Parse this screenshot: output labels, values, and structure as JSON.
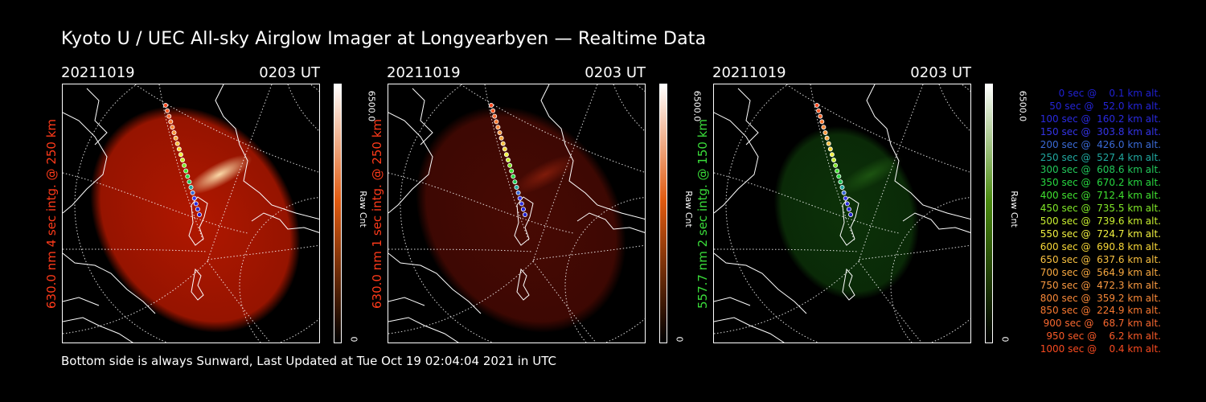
{
  "title": "Kyoto U / UEC All-sky Airglow Imager at Longyearbyen — Realtime Data",
  "footer": "Bottom side is always Sunward, Last Updated at Tue Oct 19 02:04:04 2021 in UTC",
  "panels": [
    {
      "date": "20211019",
      "time": "0203 UT",
      "label": "630.0 nm 4 sec intg. @ 250 km",
      "label_color": "#ff3a1a",
      "cbar_max": "6500.0",
      "cbar_min": "0",
      "cbar_unit": "Raw Cnt",
      "cbar_top": "#ffffff",
      "cbar_mid": "#e05a10",
      "cbar_bottom": "#000000",
      "glow_color": "#c41a00",
      "glow_opacity": 0.9,
      "aurora_color": "#ffe3b0",
      "aurora_opacity": 0.95
    },
    {
      "date": "20211019",
      "time": "0203 UT",
      "label": "630.0 nm 1 sec intg. @ 250 km",
      "label_color": "#ff3a1a",
      "cbar_max": "6500.0",
      "cbar_min": "0",
      "cbar_unit": "Raw Cnt",
      "cbar_top": "#ffffff",
      "cbar_mid": "#e05a10",
      "cbar_bottom": "#000000",
      "glow_color": "#5a0c04",
      "glow_opacity": 0.8,
      "aurora_color": "#b02a10",
      "aurora_opacity": 0.55
    },
    {
      "date": "20211019",
      "time": "0203 UT",
      "label": "557.7 nm 2 sec intg. @ 150 km",
      "label_color": "#3adc3a",
      "cbar_max": "6500.0",
      "cbar_min": "0",
      "cbar_unit": "Raw Cnt",
      "cbar_top": "#ffffff",
      "cbar_mid": "#4a8a10",
      "cbar_bottom": "#000000",
      "glow_color": "#0e3a0a",
      "glow_opacity": 0.85,
      "aurora_color": "#2e7a1a",
      "aurora_opacity": 0.5
    }
  ],
  "legend": [
    {
      "text": "   0 sec @    0.1 km alt.",
      "color": "#2020d0"
    },
    {
      "text": "  50 sec @   52.0 km alt.",
      "color": "#2424d8"
    },
    {
      "text": " 100 sec @  160.2 km alt.",
      "color": "#2a2ae0"
    },
    {
      "text": " 150 sec @  303.8 km alt.",
      "color": "#3434e6"
    },
    {
      "text": " 200 sec @  426.0 km alt.",
      "color": "#3a6ad6"
    },
    {
      "text": " 250 sec @  527.4 km alt.",
      "color": "#20a8a0"
    },
    {
      "text": " 300 sec @  608.6 km alt.",
      "color": "#22c85a"
    },
    {
      "text": " 350 sec @  670.2 km alt.",
      "color": "#28d840"
    },
    {
      "text": " 400 sec @  712.4 km alt.",
      "color": "#40e030"
    },
    {
      "text": " 450 sec @  735.5 km alt.",
      "color": "#80e828"
    },
    {
      "text": " 500 sec @  739.6 km alt.",
      "color": "#c8ee30"
    },
    {
      "text": " 550 sec @  724.7 km alt.",
      "color": "#f0f040"
    },
    {
      "text": " 600 sec @  690.8 km alt.",
      "color": "#f8d838"
    },
    {
      "text": " 650 sec @  637.6 km alt.",
      "color": "#f8c040"
    },
    {
      "text": " 700 sec @  564.9 km alt.",
      "color": "#f8a840"
    },
    {
      "text": " 750 sec @  472.3 km alt.",
      "color": "#f89840"
    },
    {
      "text": " 800 sec @  359.2 km alt.",
      "color": "#f88838"
    },
    {
      "text": " 850 sec @  224.9 km alt.",
      "color": "#f87830"
    },
    {
      "text": " 900 sec @   68.7 km alt.",
      "color": "#f86830"
    },
    {
      "text": " 950 sec @    6.2 km alt.",
      "color": "#f85a28"
    },
    {
      "text": "1000 sec @    0.4 km alt.",
      "color": "#f84a20"
    }
  ]
}
